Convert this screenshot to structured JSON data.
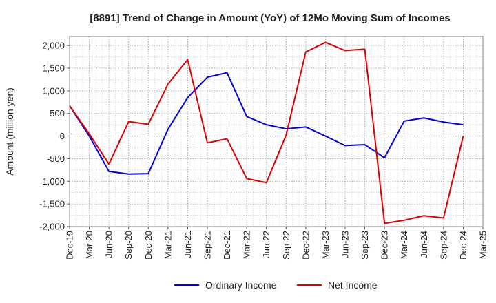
{
  "chart_data": {
    "type": "line",
    "title": "[8891]  Trend of Change in Amount (YoY) of 12Mo Moving Sum of Incomes",
    "xlabel": "",
    "ylabel": "Amount (million yen)",
    "ylim": [
      -2000,
      2200
    ],
    "yticks": [
      2000,
      1500,
      1000,
      500,
      0,
      -500,
      -1000,
      -1500,
      -2000
    ],
    "ytick_labels": [
      "2,000",
      "1,500",
      "1,000",
      "500",
      "0",
      "-500",
      "-1,000",
      "-1,500",
      "-2,000"
    ],
    "xtick_labels": [
      "Dec-19",
      "Mar-20",
      "Jun-20",
      "Sep-20",
      "Dec-20",
      "Mar-21",
      "Jun-21",
      "Sep-21",
      "Dec-21",
      "Mar-22",
      "Jun-22",
      "Sep-22",
      "Dec-22",
      "Mar-23",
      "Jun-23",
      "Sep-23",
      "Dec-23",
      "Mar-24",
      "Jun-24",
      "Sep-24",
      "Dec-24",
      "Mar-25"
    ],
    "grid": true,
    "legend_position": "bottom-center",
    "series": [
      {
        "name": "Ordinary Income",
        "color": "#0000dd",
        "values": [
          670,
          0,
          -780,
          -840,
          -830,
          150,
          850,
          1300,
          1400,
          430,
          250,
          160,
          200,
          0,
          -210,
          -190,
          -480,
          330,
          400,
          310,
          250,
          null
        ]
      },
      {
        "name": "Net Income",
        "color": "#dd0000",
        "values": [
          670,
          50,
          -620,
          320,
          260,
          1150,
          1690,
          -150,
          -60,
          -940,
          -1030,
          20,
          1860,
          2070,
          1890,
          1920,
          -1930,
          -1860,
          -1760,
          -1810,
          0,
          null
        ]
      }
    ]
  }
}
